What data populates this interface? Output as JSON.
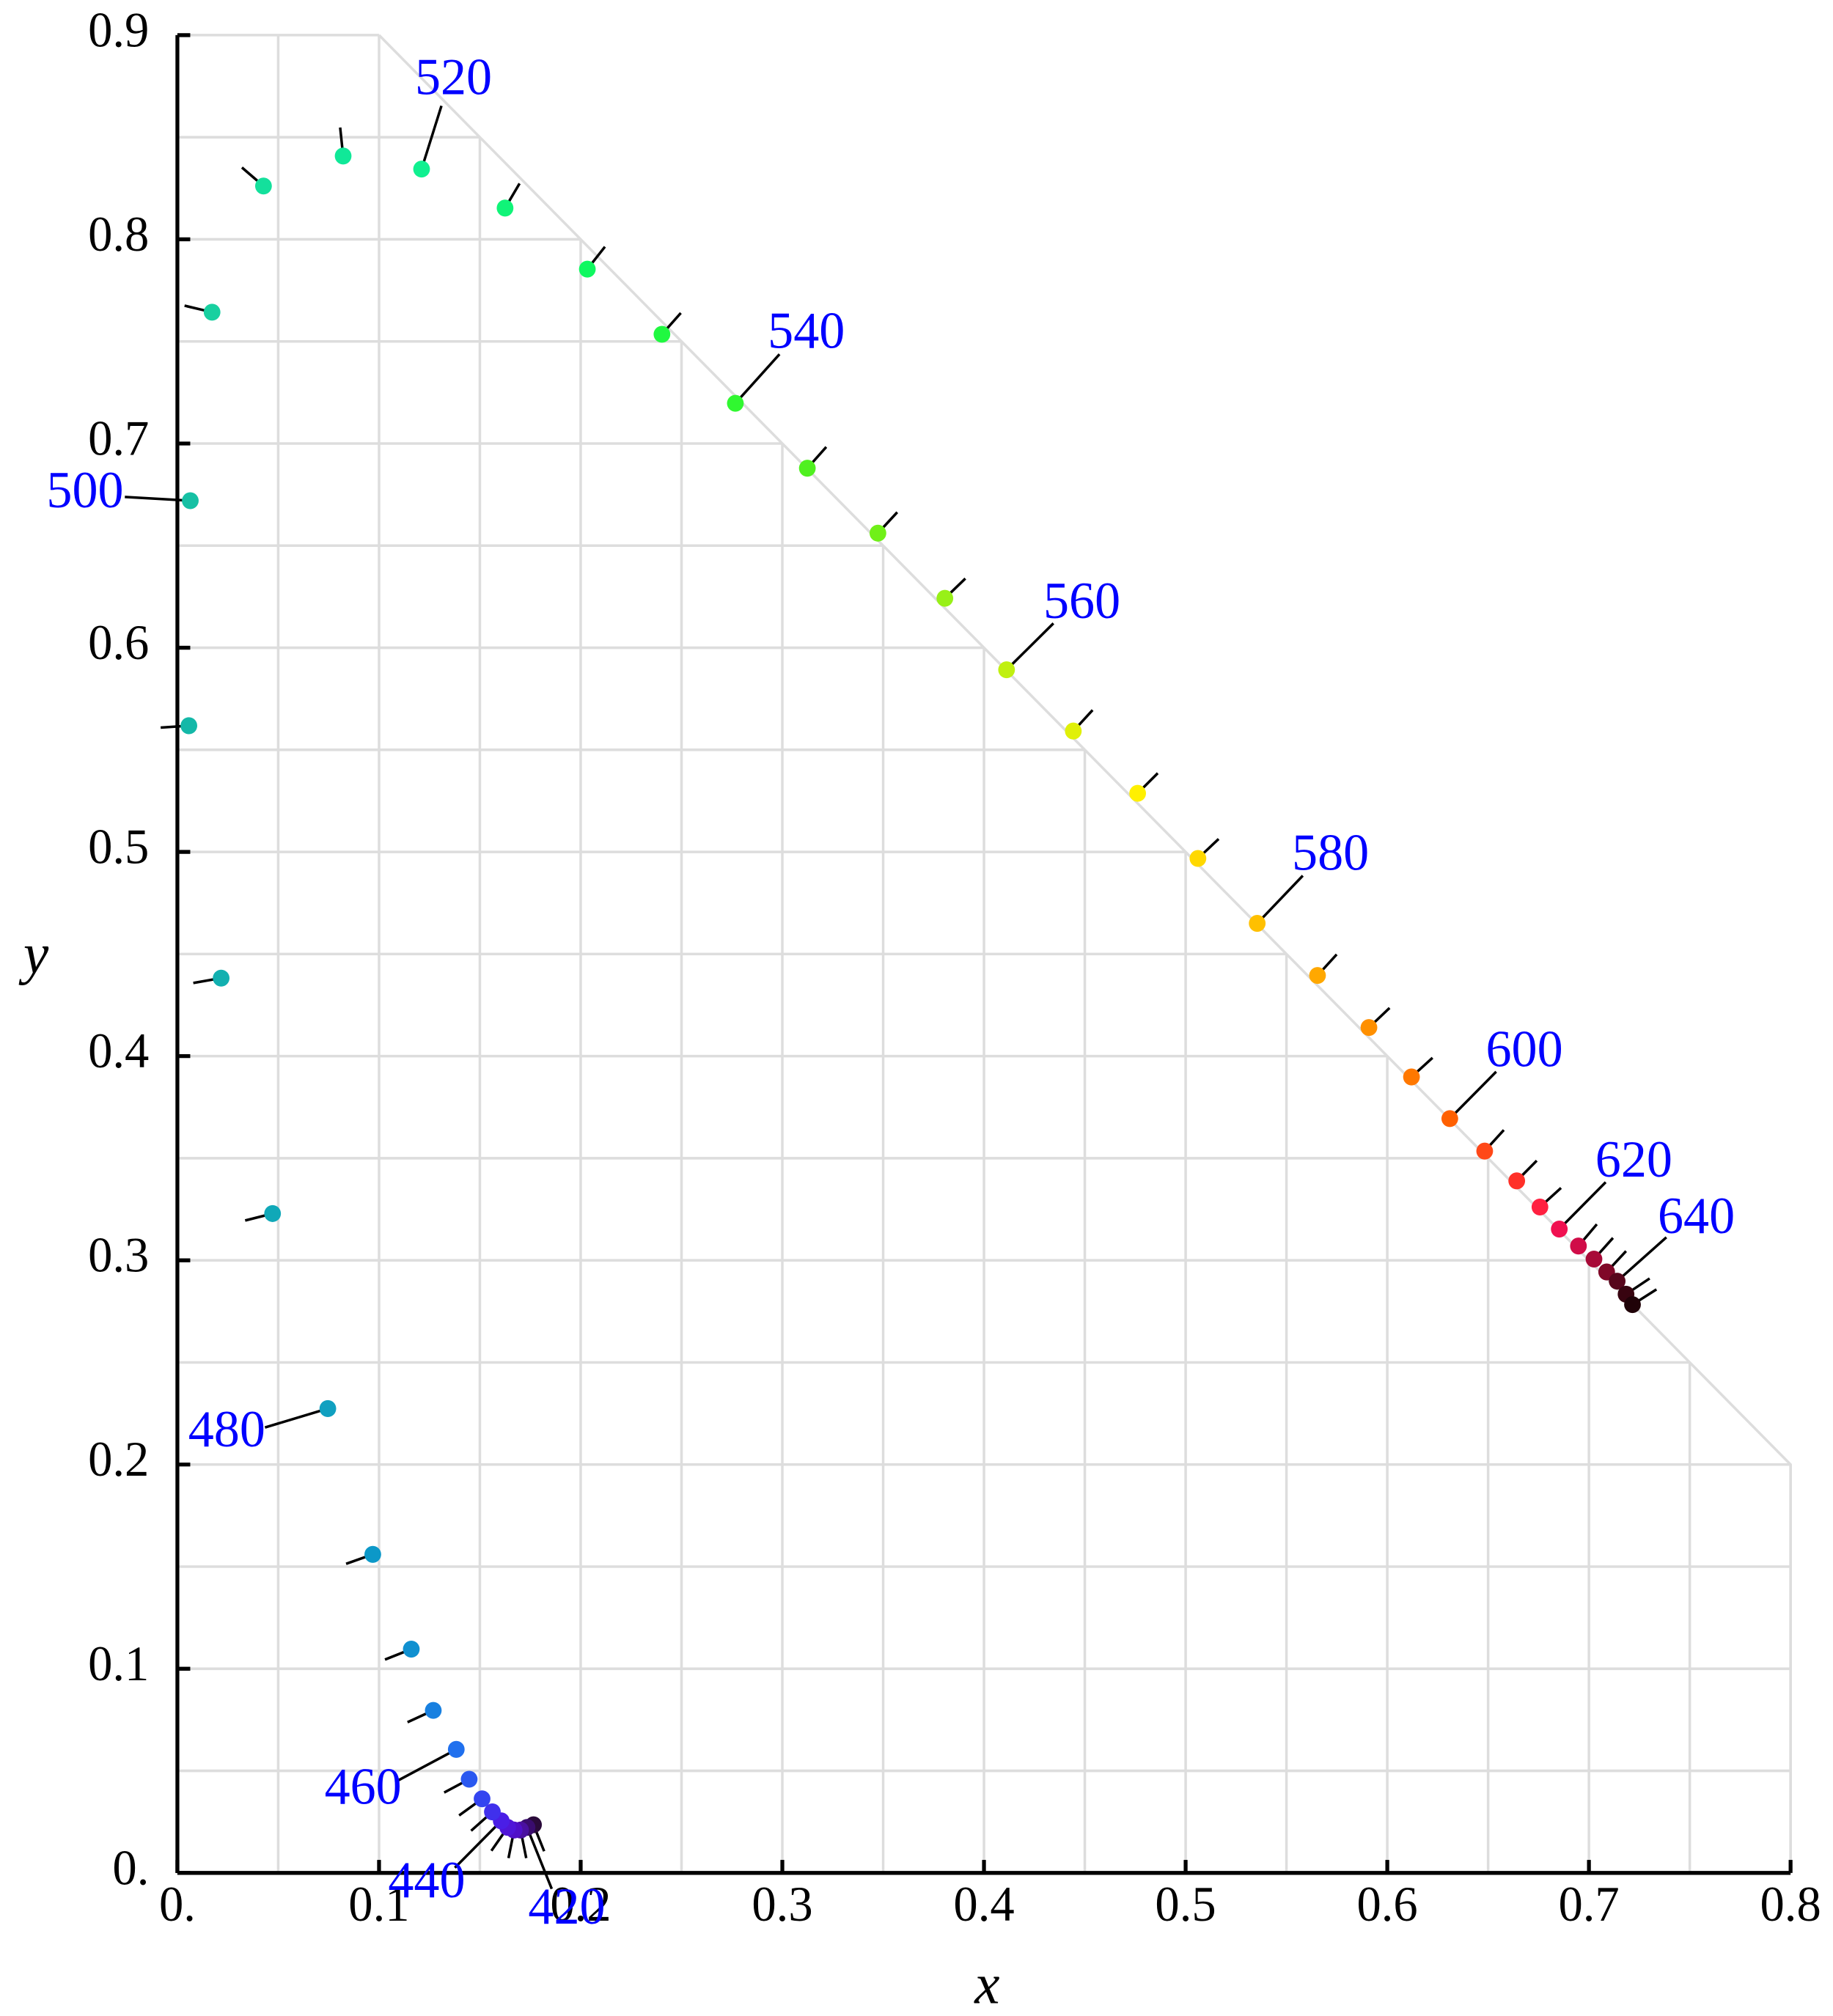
{
  "chart_data": {
    "type": "scatter",
    "xlabel": "x",
    "ylabel": "y",
    "x": [
      0.1766,
      0.1734,
      0.1702,
      0.167,
      0.1638,
      0.1606,
      0.1562,
      0.1511,
      0.1447,
      0.1383,
      0.1269,
      0.116,
      0.0969,
      0.0746,
      0.0472,
      0.0217,
      0.0057,
      0.0064,
      0.0172,
      0.0427,
      0.0822,
      0.1211,
      0.1625,
      0.2033,
      0.2403,
      0.2767,
      0.3124,
      0.3474,
      0.3806,
      0.4112,
      0.4443,
      0.4762,
      0.5061,
      0.5355,
      0.5654,
      0.5909,
      0.612,
      0.631,
      0.6483,
      0.6642,
      0.6757,
      0.6853,
      0.6948,
      0.7025,
      0.7088,
      0.714,
      0.7184,
      0.7216
    ],
    "values": [
      0.0236,
      0.0223,
      0.021,
      0.021,
      0.0223,
      0.0255,
      0.0299,
      0.0363,
      0.0459,
      0.0605,
      0.0796,
      0.1096,
      0.156,
      0.2274,
      0.3229,
      0.4382,
      0.5618,
      0.672,
      0.7643,
      0.8261,
      0.8408,
      0.8344,
      0.8153,
      0.7854,
      0.7535,
      0.7197,
      0.6879,
      0.6561,
      0.6242,
      0.5892,
      0.5592,
      0.5287,
      0.4968,
      0.465,
      0.4395,
      0.414,
      0.3898,
      0.3694,
      0.3535,
      0.3389,
      0.3261,
      0.3153,
      0.307,
      0.3006,
      0.2943,
      0.2898,
      0.2834,
      0.2783
    ],
    "point_labels": [
      null,
      "420",
      null,
      null,
      null,
      "440",
      null,
      null,
      null,
      "460",
      null,
      null,
      null,
      "480",
      null,
      null,
      null,
      "500",
      null,
      null,
      null,
      "520",
      null,
      null,
      null,
      "540",
      null,
      null,
      null,
      "560",
      null,
      null,
      null,
      "580",
      null,
      null,
      null,
      "600",
      null,
      null,
      null,
      "620",
      null,
      null,
      null,
      "640",
      null,
      null
    ],
    "colors": [
      "#2a0a3a",
      "#3a0c6e",
      "#4a10a0",
      "#5010c8",
      "#5016d8",
      "#4a1ee6",
      "#4030ec",
      "#3444f0",
      "#2a58f0",
      "#2070ee",
      "#1880e0",
      "#1090d0",
      "#0c98c8",
      "#10a0c0",
      "#10a8b8",
      "#12b0b0",
      "#14b8a8",
      "#16c0a4",
      "#18d0a0",
      "#14e09c",
      "#10e898",
      "#10f090",
      "#10f478",
      "#10f860",
      "#20f840",
      "#30f830",
      "#50f020",
      "#70f018",
      "#98f018",
      "#c0f010",
      "#e0f008",
      "#fff000",
      "#ffd800",
      "#ffc000",
      "#ffa800",
      "#ff9000",
      "#ff7800",
      "#ff6000",
      "#ff4818",
      "#ff3028",
      "#ff2040",
      "#f01050",
      "#d00c48",
      "#a80a38",
      "#800828",
      "#58061c",
      "#380410",
      "#200208"
    ],
    "label_color": "#0000ff",
    "xlim": [
      0,
      0.8
    ],
    "ylim": [
      0,
      0.9
    ],
    "xticks": [
      {
        "value": 0,
        "label": "0."
      },
      0.1,
      0.2,
      0.3,
      0.4,
      0.5,
      0.6,
      0.7,
      0.8
    ],
    "yticks": [
      {
        "value": 0,
        "label": "0."
      },
      0.1,
      0.2,
      0.3,
      0.4,
      0.5,
      0.6,
      0.7,
      0.8,
      0.9
    ],
    "xminor": [
      0.05,
      0.15,
      0.25,
      0.35,
      0.45,
      0.55,
      0.65,
      0.75
    ],
    "yminor": [
      0.05,
      0.15,
      0.25,
      0.35,
      0.45,
      0.55,
      0.65,
      0.75,
      0.85
    ],
    "grid": true
  }
}
